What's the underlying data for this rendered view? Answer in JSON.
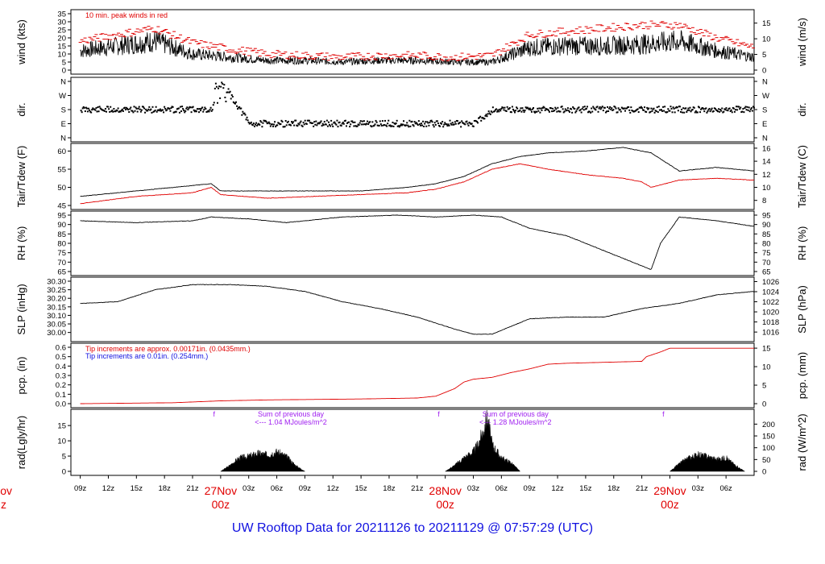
{
  "footer": "UW Rooftop Data for 20211126  to  20211129 @ 07:57:29  (UTC)",
  "colors": {
    "series": "#000000",
    "red": "#e00000",
    "blue": "#1010e0",
    "purple": "#a020f0"
  },
  "chart_data": [
    {
      "type": "line",
      "id": "wind",
      "ylabel": "wind (kts)",
      "ylabel_right": "wind (m/s)",
      "ylim": [
        0,
        35
      ],
      "yticks": [
        0,
        5,
        10,
        15,
        20,
        25,
        30,
        35
      ],
      "yticks_right": [
        0,
        5,
        10,
        15
      ],
      "annotation": "10 min. peak winds in red",
      "series": [
        {
          "color": "#000000",
          "x": [
            0,
            4,
            8,
            12,
            16,
            20,
            24,
            28,
            32,
            36,
            40,
            44,
            48,
            52,
            56,
            60,
            64,
            68,
            72
          ],
          "values": [
            12,
            15,
            18,
            10,
            8,
            6,
            6,
            5,
            6,
            6,
            5,
            5,
            14,
            15,
            15,
            16,
            18,
            12,
            8
          ]
        },
        {
          "color": "#e00000",
          "x": [
            0,
            4,
            8,
            12,
            16,
            20,
            24,
            28,
            32,
            36,
            40,
            44,
            48,
            52,
            56,
            60,
            64,
            68,
            72
          ],
          "values": [
            18,
            22,
            26,
            17,
            13,
            10,
            9,
            8,
            9,
            9,
            8,
            9,
            22,
            24,
            26,
            28,
            28,
            20,
            14
          ]
        }
      ]
    },
    {
      "type": "scatter",
      "id": "dir",
      "ylabel": "dir.",
      "yticks": [
        "N",
        "W",
        "S",
        "E",
        "N"
      ],
      "series": [
        {
          "color": "#000000",
          "x": [
            0,
            6,
            12,
            14,
            15,
            18,
            24,
            30,
            36,
            40,
            42,
            44,
            48,
            54,
            60,
            64,
            66,
            72
          ],
          "values": [
            "S",
            "S",
            "S",
            "S",
            "N",
            "E",
            "E",
            "E",
            "E",
            "E",
            "E",
            "S",
            "S",
            "S",
            "S",
            "S",
            "S",
            "S"
          ]
        }
      ]
    },
    {
      "type": "line",
      "id": "temp",
      "ylabel": "Tair/Tdew (F)",
      "ylabel_right": "Tair/Tdew (C)",
      "ylim": [
        45,
        61
      ],
      "yticks": [
        45,
        50,
        55,
        60
      ],
      "yticks_right": [
        8,
        10,
        12,
        14,
        16
      ],
      "series": [
        {
          "color": "#000000",
          "x": [
            0,
            6,
            12,
            14,
            15,
            20,
            25,
            30,
            35,
            38,
            41,
            44,
            47,
            50,
            54,
            58,
            60,
            61,
            64,
            68,
            72
          ],
          "values": [
            47.5,
            49,
            50.5,
            51,
            49,
            49,
            49,
            49,
            50,
            51,
            53,
            56.5,
            58.5,
            59.5,
            60,
            61,
            60,
            59.5,
            54.5,
            55.5,
            54.5
          ]
        },
        {
          "color": "#e00000",
          "x": [
            0,
            6,
            12,
            14,
            15,
            20,
            25,
            30,
            35,
            38,
            41,
            44,
            47,
            50,
            54,
            58,
            60,
            61,
            64,
            68,
            72
          ],
          "values": [
            45.5,
            47.5,
            48.5,
            50,
            48,
            47,
            47.5,
            48,
            48.5,
            49.5,
            51.5,
            55,
            56.5,
            55,
            53.5,
            52.5,
            51.5,
            50,
            52,
            52.5,
            52
          ]
        }
      ]
    },
    {
      "type": "line",
      "id": "rh",
      "ylabel": "RH (%)",
      "ylabel_right": "RH (%)",
      "ylim": [
        65,
        95
      ],
      "yticks": [
        65,
        70,
        75,
        80,
        85,
        90,
        95
      ],
      "yticks_right": [
        65,
        70,
        75,
        80,
        85,
        90,
        95
      ],
      "series": [
        {
          "color": "#000000",
          "x": [
            0,
            6,
            12,
            14,
            18,
            22,
            28,
            34,
            38,
            42,
            45,
            48,
            52,
            56,
            58,
            60,
            61,
            62,
            64,
            68,
            72
          ],
          "values": [
            92,
            91,
            92,
            94,
            93,
            91,
            94,
            95,
            94,
            95,
            94,
            88,
            84,
            76,
            72,
            68,
            66,
            80,
            94,
            92,
            89
          ]
        }
      ]
    },
    {
      "type": "line",
      "id": "slp",
      "ylabel": "SLP (inHg)",
      "ylabel_right": "SLP (hPa)",
      "ylim": [
        29.97,
        30.3
      ],
      "yticks": [
        30.0,
        30.05,
        30.1,
        30.15,
        30.2,
        30.25,
        30.3
      ],
      "ytick_labels": [
        "30.00",
        "30.05",
        "30.10",
        "30.15",
        "30.20",
        "30.25",
        "30.30"
      ],
      "yticks_right": [
        1016,
        1018,
        1020,
        1022,
        1024,
        1026
      ],
      "series": [
        {
          "color": "#000000",
          "x": [
            0,
            4,
            8,
            12,
            16,
            20,
            24,
            28,
            32,
            36,
            40,
            42,
            44,
            48,
            52,
            56,
            60,
            64,
            68,
            72
          ],
          "values": [
            30.17,
            30.18,
            30.25,
            30.28,
            30.28,
            30.27,
            30.24,
            30.18,
            30.14,
            30.09,
            30.02,
            29.99,
            29.99,
            30.08,
            30.09,
            30.09,
            30.14,
            30.17,
            30.22,
            30.24
          ]
        }
      ]
    },
    {
      "type": "line",
      "id": "pcp",
      "ylabel": "pcp. (in)",
      "ylabel_right": "pcp. (mm)",
      "ylim": [
        0,
        0.6
      ],
      "yticks": [
        0.0,
        0.1,
        0.2,
        0.3,
        0.4,
        0.5,
        0.6
      ],
      "ytick_labels": [
        "0.0",
        "0.1",
        "0.2",
        "0.3",
        "0.4",
        "0.5",
        "0.6"
      ],
      "yticks_right": [
        0,
        5,
        10,
        15
      ],
      "note_red": "Tip increments are approx. 0.00171in. (0.0435mm.)",
      "note_blue": "Tip increments are 0.01in. (0.254mm.)",
      "series": [
        {
          "color": "#e00000",
          "x": [
            0,
            10,
            15,
            20,
            30,
            36,
            38,
            40,
            41,
            42,
            44,
            46,
            48,
            50,
            52,
            56,
            60,
            60.5,
            62,
            63,
            72
          ],
          "values": [
            0,
            0.01,
            0.03,
            0.04,
            0.05,
            0.06,
            0.08,
            0.16,
            0.23,
            0.26,
            0.28,
            0.33,
            0.37,
            0.42,
            0.43,
            0.44,
            0.45,
            0.5,
            0.55,
            0.59,
            0.59
          ]
        }
      ]
    },
    {
      "type": "area",
      "id": "rad",
      "ylabel": "rad(Lgly/hr)",
      "ylabel_right": "rad (W/m^2)",
      "ylim": [
        0,
        19
      ],
      "yticks": [
        0,
        5,
        10,
        15
      ],
      "yticks_right": [
        0,
        50,
        100,
        150,
        200
      ],
      "markers": [
        "f",
        "f",
        "f"
      ],
      "sums": [
        {
          "line1": "Sum of previous day",
          "line2": "<--- 1.04 MJoules/m^2"
        },
        {
          "line1": "Sum of previous day",
          "line2": "<--- 1.28 MJoules/m^2"
        }
      ],
      "series": [
        {
          "color": "#000000",
          "x": [
            15,
            16,
            17,
            18,
            19,
            20,
            21,
            22,
            23,
            24,
            39,
            40,
            41,
            42,
            42.5,
            43,
            43.5,
            44,
            45,
            46,
            47,
            63,
            64,
            65,
            66,
            67,
            68,
            69,
            70,
            71
          ],
          "values": [
            0,
            2,
            4.5,
            5,
            6,
            5.5,
            6.5,
            5,
            2,
            0,
            0,
            2,
            4.5,
            6.5,
            9,
            13,
            18,
            9,
            4.5,
            3,
            0,
            0,
            2.5,
            4.5,
            5.5,
            5,
            4,
            4.5,
            2,
            0
          ]
        }
      ]
    }
  ],
  "x_axis": {
    "hour_labels": [
      "09z",
      "12z",
      "15z",
      "18z",
      "21z",
      "03z",
      "06z",
      "09z",
      "12z",
      "15z",
      "18z",
      "21z",
      "03z",
      "06z",
      "09z",
      "12z",
      "15z",
      "18z",
      "21z",
      "03z",
      "06z"
    ],
    "hour_values": [
      0,
      3,
      6,
      9,
      12,
      18,
      21,
      24,
      27,
      30,
      33,
      36,
      42,
      45,
      48,
      51,
      54,
      57,
      60,
      66,
      69
    ],
    "day_labels": [
      {
        "x": 15,
        "date": "27Nov",
        "time": "00z"
      },
      {
        "x": 39,
        "date": "28Nov",
        "time": "00z"
      },
      {
        "x": 63,
        "date": "29Nov",
        "time": "00z"
      }
    ],
    "clipped_edge_label": {
      "date": "ov",
      "time": "z"
    },
    "xlim": [
      -1,
      72
    ]
  }
}
